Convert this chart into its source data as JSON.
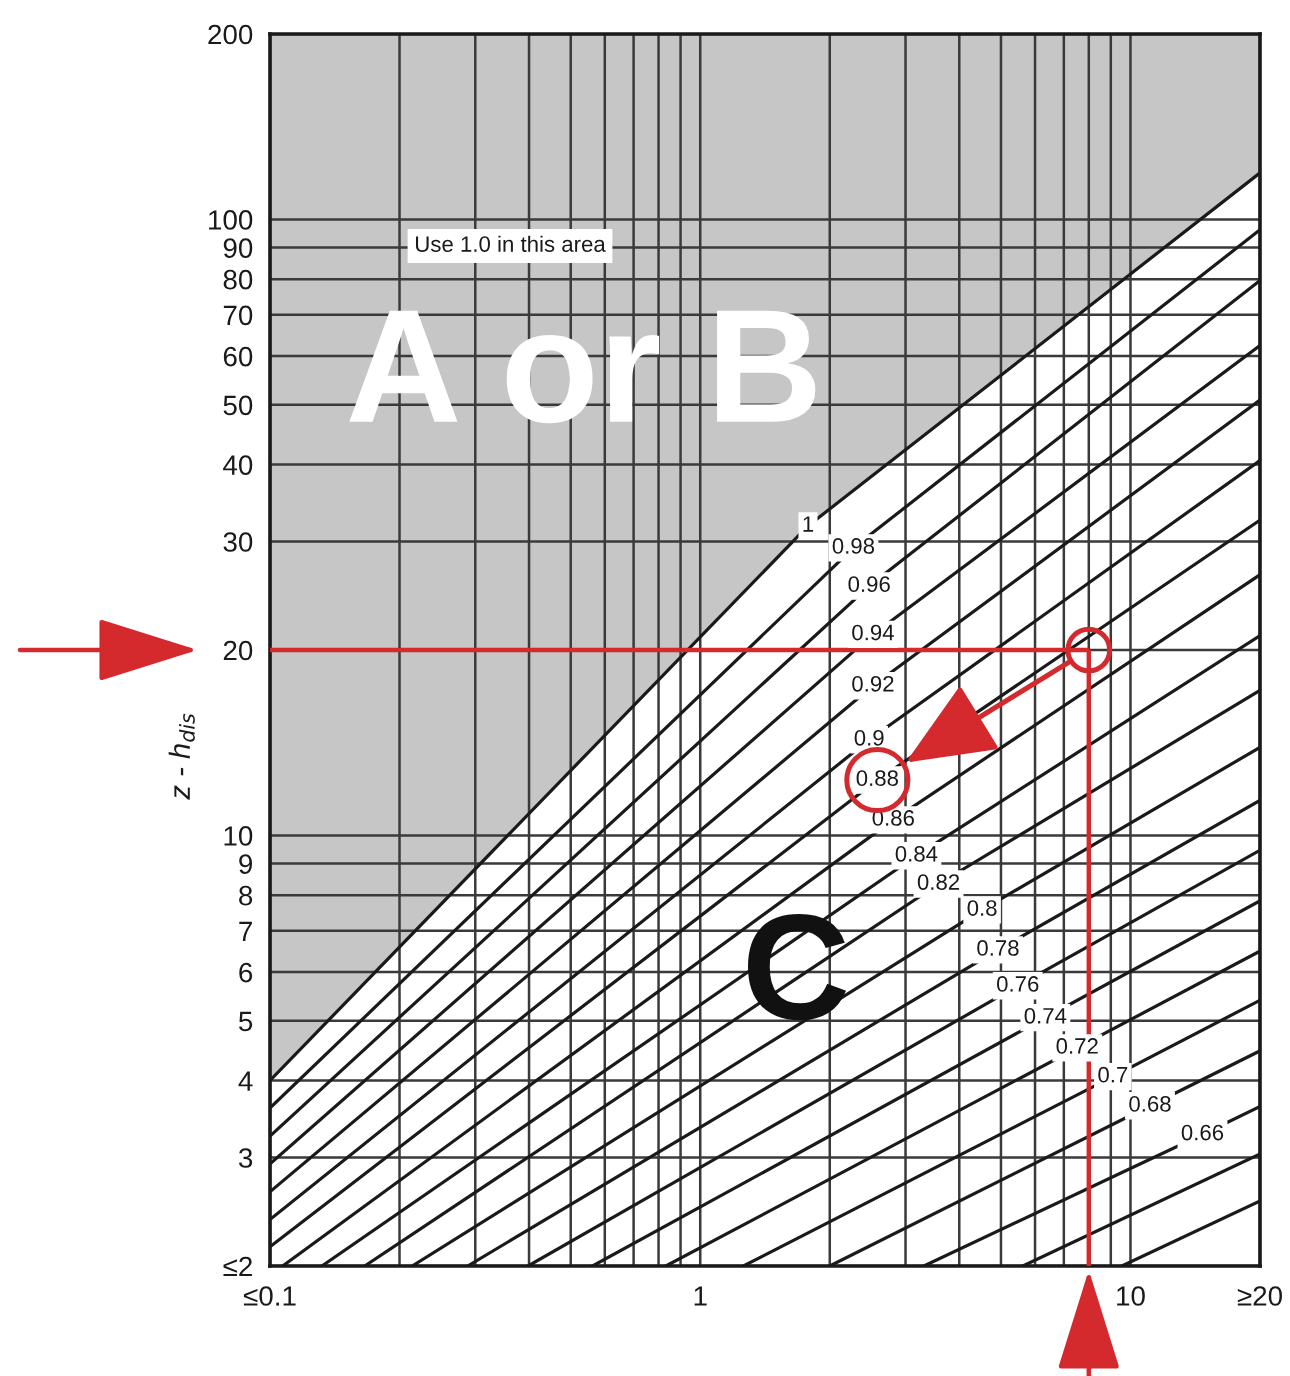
{
  "chart_data": {
    "type": "line",
    "ylabel": "z - h$_{dis}$",
    "log": "xy",
    "grid": true,
    "xlim": [
      0.1,
      20
    ],
    "ylim": [
      2,
      200
    ],
    "xticks": [
      {
        "value": 0.1,
        "label": "≤0.1"
      },
      {
        "value": 0.2,
        "label": null
      },
      {
        "value": 0.3,
        "label": null
      },
      {
        "value": 0.4,
        "label": null
      },
      {
        "value": 0.5,
        "label": null
      },
      {
        "value": 0.6,
        "label": null
      },
      {
        "value": 0.7,
        "label": null
      },
      {
        "value": 0.8,
        "label": null
      },
      {
        "value": 0.9,
        "label": null
      },
      1,
      {
        "value": 2,
        "label": null
      },
      {
        "value": 3,
        "label": null
      },
      {
        "value": 4,
        "label": null
      },
      {
        "value": 5,
        "label": null
      },
      {
        "value": 6,
        "label": null
      },
      {
        "value": 7,
        "label": null
      },
      {
        "value": 8,
        "label": null
      },
      {
        "value": 9,
        "label": null
      },
      10,
      {
        "value": 20,
        "label": "≥20"
      }
    ],
    "yticks": [
      {
        "value": 2,
        "label": "≤2"
      },
      3,
      4,
      5,
      6,
      7,
      8,
      9,
      10,
      20,
      30,
      40,
      50,
      60,
      70,
      80,
      90,
      100,
      200
    ],
    "series": [
      {
        "name": "1",
        "color": "#1a1a1a",
        "x": [
          0.1,
          1.78,
          20
        ],
        "values": [
          4.0,
          31.8,
          119
        ],
        "lower": [
          4.0,
          31.8,
          119
        ],
        "upper": [
          200,
          200,
          200
        ]
      },
      {
        "name": "0.98",
        "color": "#1a1a1a",
        "x": [
          0.1,
          2.27,
          20
        ],
        "values": [
          3.61,
          29.3,
          96.2
        ]
      },
      {
        "name": "0.96",
        "color": "#1a1a1a",
        "x": [
          0.1,
          2.47,
          20
        ],
        "values": [
          3.25,
          25.4,
          79.6
        ]
      },
      {
        "name": "0.94",
        "color": "#1a1a1a",
        "x": [
          0.1,
          2.52,
          20
        ],
        "values": [
          2.93,
          21.2,
          62.4
        ]
      },
      {
        "name": "0.92",
        "color": "#1a1a1a",
        "x": [
          0.1,
          2.52,
          20
        ],
        "values": [
          2.64,
          17.5,
          50.9
        ]
      },
      {
        "name": "0.9",
        "color": "#1a1a1a",
        "x": [
          0.1,
          2.47,
          20
        ],
        "values": [
          2.38,
          14.3,
          40.6
        ]
      },
      {
        "name": "0.88",
        "color": "#1a1a1a",
        "x": [
          0.1,
          2.58,
          20
        ],
        "values": [
          2.15,
          12.3,
          32.5
        ]
      },
      {
        "name": "0.86",
        "color": "#1a1a1a",
        "x": [
          0.107,
          2.81,
          20
        ],
        "values": [
          2,
          10.6,
          26.5
        ]
      },
      {
        "name": "0.84",
        "color": "#1a1a1a",
        "x": [
          0.132,
          3.18,
          20
        ],
        "values": [
          2,
          9.27,
          21.1
        ]
      },
      {
        "name": "0.82",
        "color": "#1a1a1a",
        "x": [
          0.166,
          3.58,
          20
        ],
        "values": [
          2,
          8.34,
          17.2
        ]
      },
      {
        "name": "0.8",
        "color": "#1a1a1a",
        "x": [
          0.214,
          4.52,
          20
        ],
        "values": [
          2,
          7.57,
          13.9
        ]
      },
      {
        "name": "0.78",
        "color": "#1a1a1a",
        "x": [
          0.288,
          4.92,
          20
        ],
        "values": [
          2,
          6.52,
          11.4
        ]
      },
      {
        "name": "0.76",
        "color": "#1a1a1a",
        "x": [
          0.398,
          5.47,
          20
        ],
        "values": [
          2,
          5.7,
          9.46
        ]
      },
      {
        "name": "0.74",
        "color": "#1a1a1a",
        "x": [
          0.562,
          6.34,
          20
        ],
        "values": [
          2,
          5.06,
          7.83
        ]
      },
      {
        "name": "0.72",
        "color": "#1a1a1a",
        "x": [
          0.832,
          7.52,
          20
        ],
        "values": [
          2,
          4.52,
          6.49
        ]
      },
      {
        "name": "0.7",
        "color": "#1a1a1a",
        "x": [
          1.26,
          9.1,
          20
        ],
        "values": [
          2,
          4.06,
          5.4
        ]
      },
      {
        "name": "0.68",
        "color": "#1a1a1a",
        "x": [
          2.0,
          11.1,
          20
        ],
        "values": [
          2,
          3.64,
          4.47
        ]
      },
      {
        "name": "0.66",
        "color": "#1a1a1a",
        "x": [
          3.31,
          14.7,
          20
        ],
        "values": [
          2,
          3.27,
          3.63
        ]
      },
      {
        "color": "#1a1a1a",
        "x": [
          5.62,
          20
        ],
        "values": [
          2,
          3.04
        ]
      },
      {
        "color": "#1a1a1a",
        "x": [
          9.55,
          20
        ],
        "values": [
          2,
          2.55
        ]
      }
    ],
    "ref_lines": [
      {
        "axis": "y",
        "value": 20,
        "color": "#d42a2e"
      },
      {
        "axis": "x",
        "value": 8,
        "color": "#d42a2e"
      }
    ],
    "annotations": [
      "Use 1.0 in this area",
      "A or B",
      "C"
    ]
  }
}
